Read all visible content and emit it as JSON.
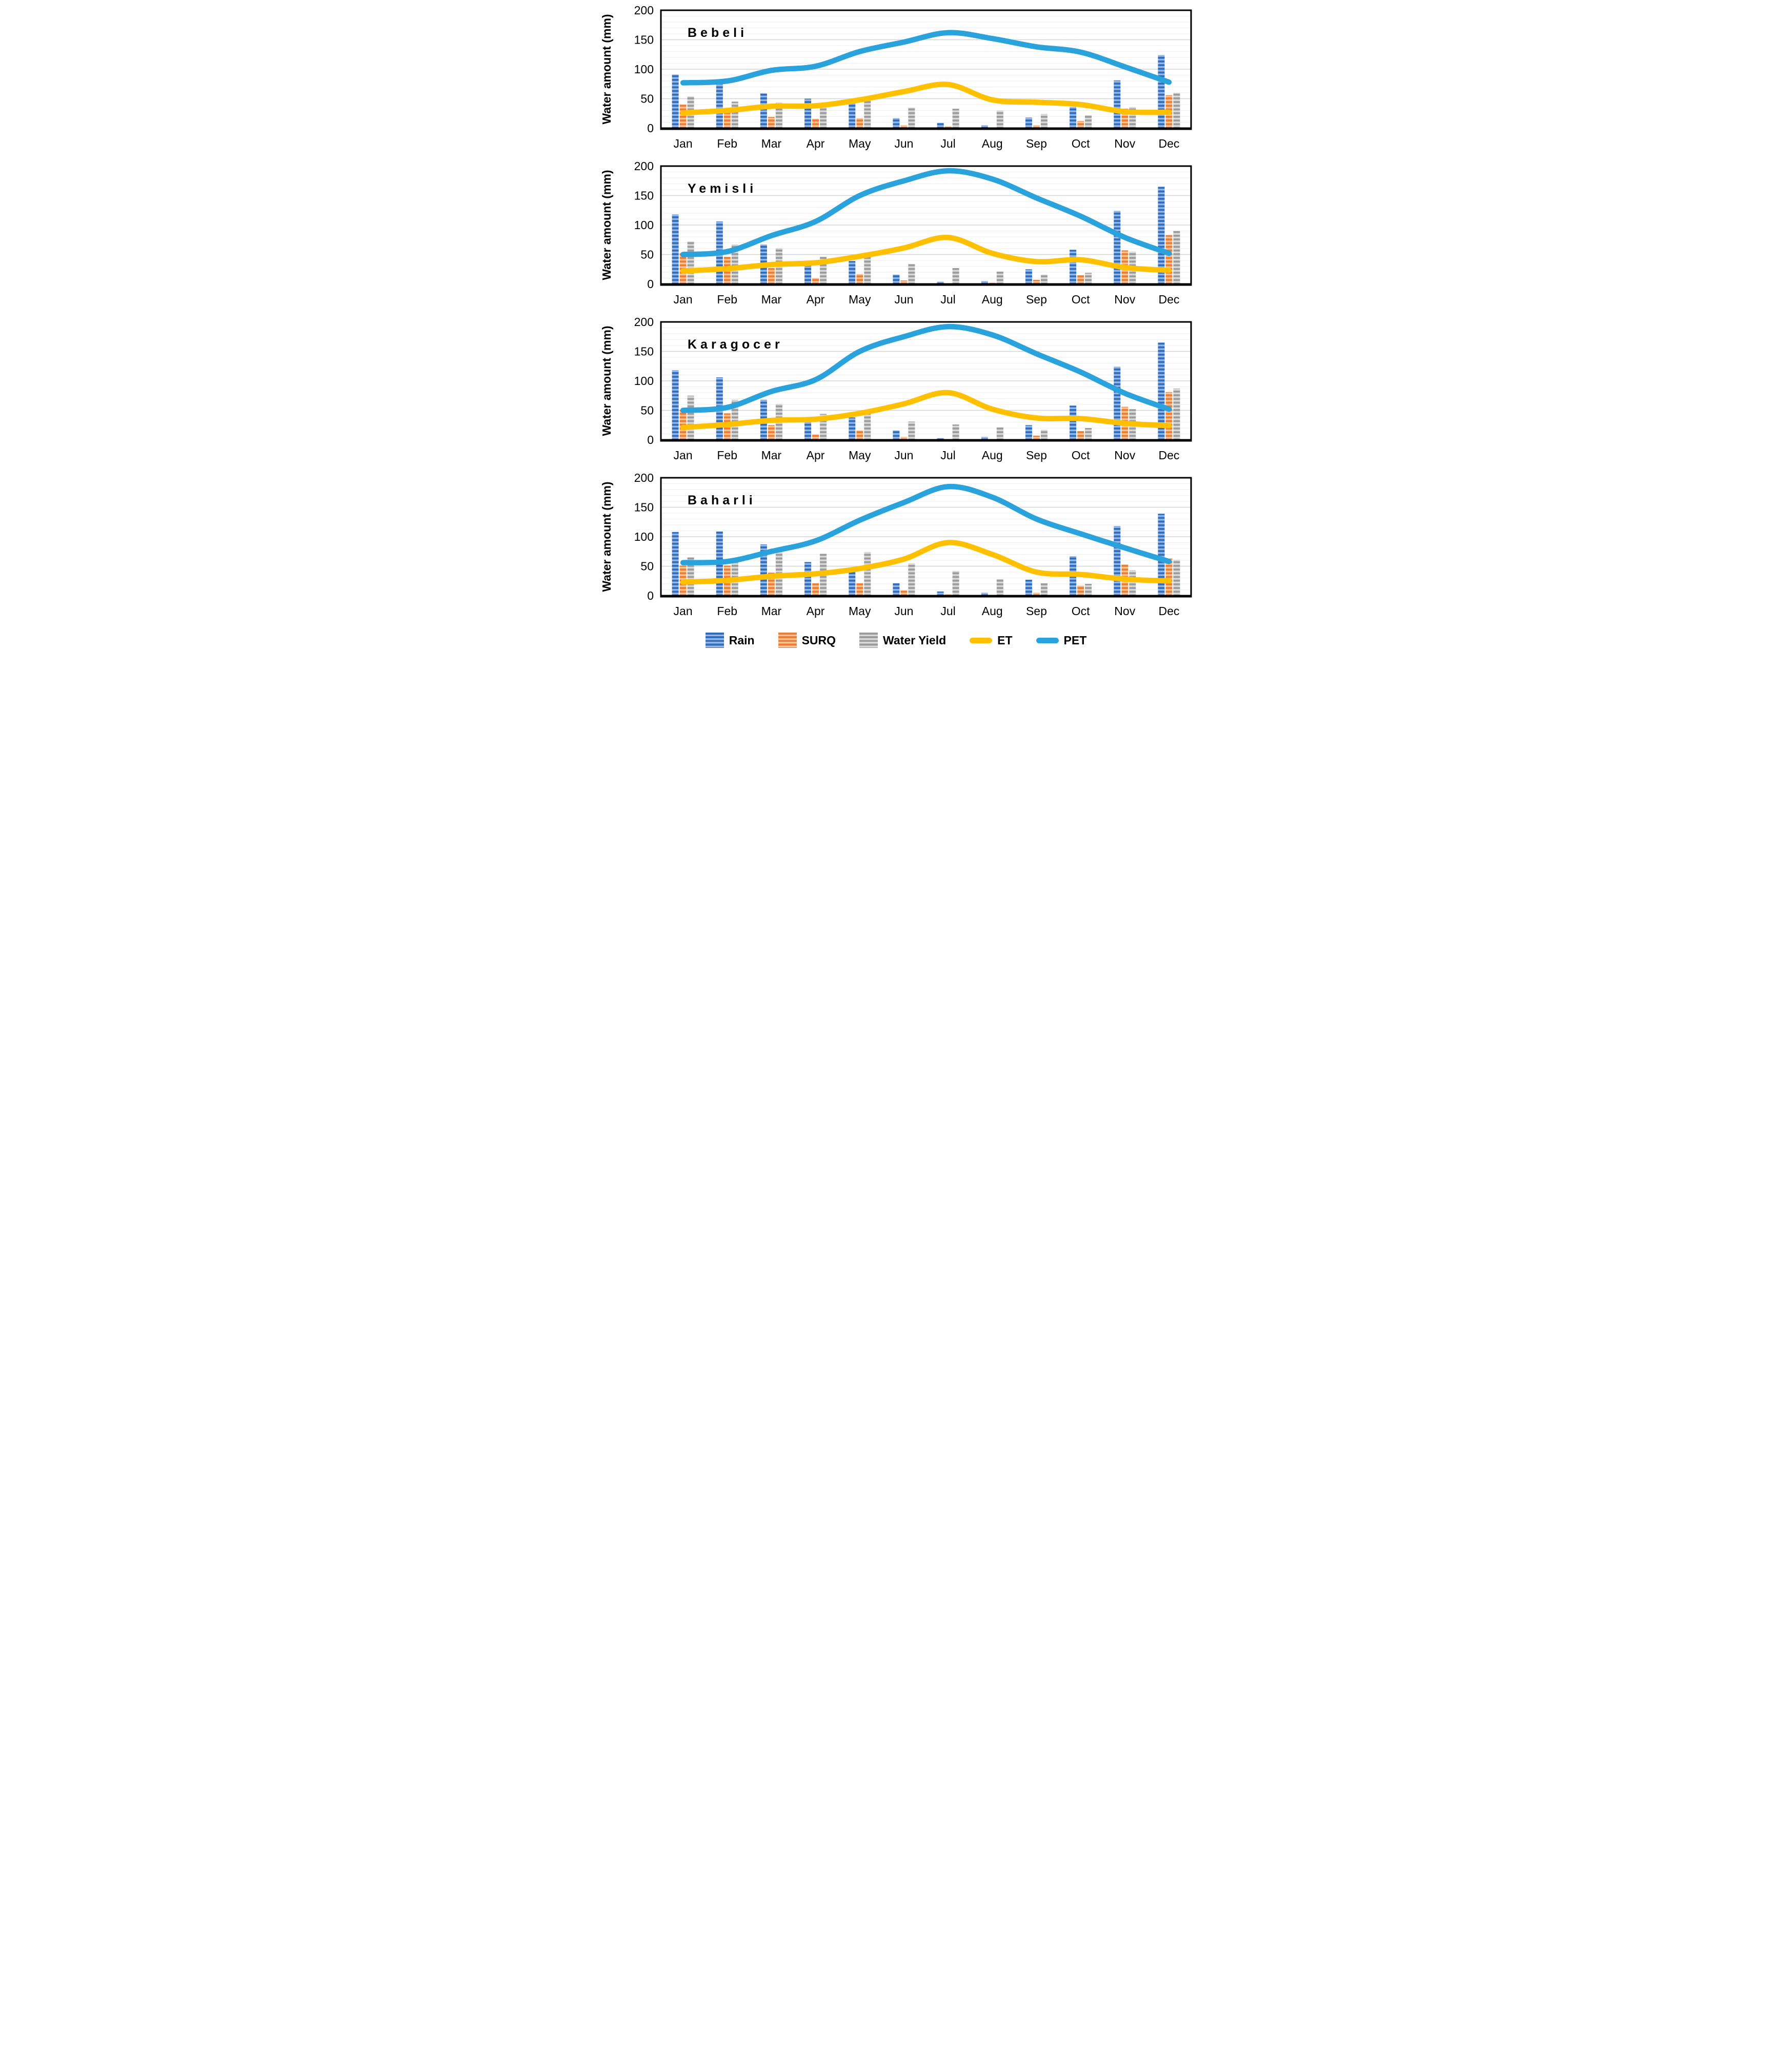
{
  "ylabel": "Water amount (mm)",
  "months": [
    "Jan",
    "Feb",
    "Mar",
    "Apr",
    "May",
    "Jun",
    "Jul",
    "Aug",
    "Sep",
    "Oct",
    "Nov",
    "Dec"
  ],
  "axis": {
    "ymin": 0,
    "ymax": 200,
    "ytick_step": 50,
    "grid_step": 10,
    "yticks": [
      0,
      50,
      100,
      150,
      200
    ]
  },
  "legend": [
    {
      "label": "Rain",
      "type": "bar",
      "key": "rain"
    },
    {
      "label": "SURQ",
      "type": "bar",
      "key": "surq"
    },
    {
      "label": "Water Yield",
      "type": "bar",
      "key": "water_yield"
    },
    {
      "label": "ET",
      "type": "line",
      "key": "et"
    },
    {
      "label": "PET",
      "type": "line",
      "key": "pet"
    }
  ],
  "colors": {
    "rain_dark": "#2F6EBE",
    "rain_light": "#96B7E4",
    "surq_dark": "#ED7D31",
    "surq_light": "#F9C296",
    "wy_dark": "#9C9C9C",
    "wy_light": "#D9D9D9",
    "et": "#FFC000",
    "pet": "#2AA2DC",
    "grid_minor": "#EDEDED",
    "grid_major": "#D3D3D3",
    "axis": "#000000"
  },
  "chart_data": [
    {
      "type": "combo-bar-line",
      "title": "Bebeli",
      "xlabel": "",
      "ylabel": "Water amount (mm)",
      "ylim": [
        0,
        200
      ],
      "grid": true,
      "legend_position": "bottom-shared",
      "categories": [
        "Jan",
        "Feb",
        "Mar",
        "Apr",
        "May",
        "Jun",
        "Jul",
        "Aug",
        "Sep",
        "Oct",
        "Nov",
        "Dec"
      ],
      "series": [
        {
          "name": "Rain",
          "type": "bar",
          "values": [
            91,
            81,
            59,
            50,
            45,
            17,
            9,
            5,
            18,
            36,
            81,
            124
          ]
        },
        {
          "name": "SURQ",
          "type": "bar",
          "values": [
            40,
            27,
            19,
            16,
            17,
            5,
            3,
            1,
            5,
            12,
            33,
            56
          ]
        },
        {
          "name": "Water Yield",
          "type": "bar",
          "values": [
            54,
            45,
            43,
            42,
            49,
            35,
            33,
            30,
            24,
            22,
            36,
            60
          ]
        },
        {
          "name": "ET",
          "type": "line",
          "values": [
            26,
            30,
            37,
            38,
            48,
            62,
            74,
            48,
            44,
            40,
            28,
            27
          ]
        },
        {
          "name": "PET",
          "type": "line",
          "values": [
            77,
            80,
            98,
            105,
            130,
            146,
            162,
            152,
            138,
            129,
            104,
            78
          ]
        }
      ]
    },
    {
      "type": "combo-bar-line",
      "title": "Yemisli",
      "xlabel": "",
      "ylabel": "Water amount (mm)",
      "ylim": [
        0,
        200
      ],
      "grid": true,
      "legend_position": "bottom-shared",
      "categories": [
        "Jan",
        "Feb",
        "Mar",
        "Apr",
        "May",
        "Jun",
        "Jul",
        "Aug",
        "Sep",
        "Oct",
        "Nov",
        "Dec"
      ],
      "series": [
        {
          "name": "Rain",
          "type": "bar",
          "values": [
            118,
            106,
            67,
            31,
            39,
            16,
            4,
            5,
            25,
            58,
            124,
            165
          ]
        },
        {
          "name": "SURQ",
          "type": "bar",
          "values": [
            52,
            46,
            27,
            10,
            17,
            6,
            1,
            2,
            7,
            15,
            57,
            83
          ]
        },
        {
          "name": "Water Yield",
          "type": "bar",
          "values": [
            72,
            67,
            61,
            46,
            47,
            34,
            27,
            21,
            16,
            19,
            55,
            90
          ]
        },
        {
          "name": "ET",
          "type": "line",
          "values": [
            22,
            26,
            33,
            36,
            47,
            61,
            79,
            52,
            38,
            41,
            28,
            23
          ]
        },
        {
          "name": "PET",
          "type": "line",
          "values": [
            50,
            55,
            82,
            106,
            150,
            175,
            192,
            178,
            146,
            115,
            79,
            52
          ]
        }
      ]
    },
    {
      "type": "combo-bar-line",
      "title": "Karagocer",
      "xlabel": "",
      "ylabel": "Water amount (mm)",
      "ylim": [
        0,
        200
      ],
      "grid": true,
      "legend_position": "bottom-shared",
      "categories": [
        "Jan",
        "Feb",
        "Mar",
        "Apr",
        "May",
        "Jun",
        "Jul",
        "Aug",
        "Sep",
        "Oct",
        "Nov",
        "Dec"
      ],
      "series": [
        {
          "name": "Rain",
          "type": "bar",
          "values": [
            118,
            106,
            68,
            30,
            38,
            16,
            3,
            5,
            25,
            58,
            124,
            165
          ]
        },
        {
          "name": "SURQ",
          "type": "bar",
          "values": [
            51,
            45,
            25,
            9,
            16,
            5,
            1,
            1,
            7,
            15,
            56,
            81
          ]
        },
        {
          "name": "Water Yield",
          "type": "bar",
          "values": [
            75,
            68,
            61,
            44,
            45,
            31,
            26,
            21,
            17,
            20,
            52,
            87
          ]
        },
        {
          "name": "ET",
          "type": "line",
          "values": [
            21,
            26,
            33,
            35,
            45,
            61,
            80,
            52,
            37,
            36,
            28,
            24
          ]
        },
        {
          "name": "PET",
          "type": "line",
          "values": [
            50,
            55,
            82,
            102,
            150,
            175,
            192,
            178,
            146,
            115,
            79,
            52
          ]
        }
      ]
    },
    {
      "type": "combo-bar-line",
      "title": "Baharli",
      "xlabel": "",
      "ylabel": "Water amount  (mm)",
      "ylim": [
        0,
        200
      ],
      "grid": true,
      "legend_position": "bottom-shared",
      "categories": [
        "Jan",
        "Feb",
        "Mar",
        "Apr",
        "May",
        "Jun",
        "Jul",
        "Aug",
        "Sep",
        "Oct",
        "Nov",
        "Dec"
      ],
      "series": [
        {
          "name": "Rain",
          "type": "bar",
          "values": [
            108,
            109,
            87,
            57,
            48,
            21,
            7,
            5,
            27,
            67,
            118,
            139
          ]
        },
        {
          "name": "SURQ",
          "type": "bar",
          "values": [
            51,
            51,
            39,
            21,
            21,
            9,
            2,
            1,
            5,
            17,
            53,
            63
          ]
        },
        {
          "name": "Water Yield",
          "type": "bar",
          "values": [
            65,
            59,
            77,
            71,
            74,
            55,
            42,
            28,
            21,
            20,
            43,
            61
          ]
        },
        {
          "name": "ET",
          "type": "line",
          "values": [
            23,
            26,
            33,
            37,
            46,
            62,
            90,
            70,
            40,
            36,
            28,
            25
          ]
        },
        {
          "name": "PET",
          "type": "line",
          "values": [
            56,
            58,
            75,
            93,
            128,
            158,
            185,
            167,
            130,
            105,
            81,
            58
          ]
        }
      ]
    }
  ]
}
